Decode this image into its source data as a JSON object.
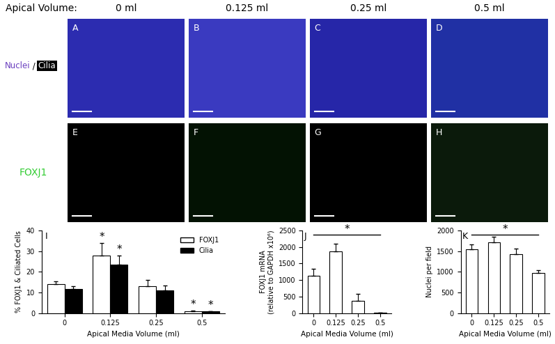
{
  "header": {
    "label": "Apical Volume:",
    "columns": [
      "0 ml",
      "0.125 ml",
      "0.25 ml",
      "0.5 ml"
    ]
  },
  "image_rows": [
    {
      "label_parts": [
        {
          "text": "Nuclei",
          "color": "#6a3fbf"
        },
        {
          "text": " / ",
          "color": "#000000"
        },
        {
          "text": "Cilia",
          "color": "#ffffff",
          "box": "#000000"
        }
      ],
      "panels": [
        {
          "letter": "A",
          "color": "#2c2cb0"
        },
        {
          "letter": "B",
          "color": "#3a3ac0"
        },
        {
          "letter": "C",
          "color": "#2626a8"
        },
        {
          "letter": "D",
          "color": "#2030a4"
        }
      ]
    },
    {
      "label_parts": [
        {
          "text": "FOXJ1",
          "color": "#33cc33"
        }
      ],
      "panels": [
        {
          "letter": "E",
          "color": "#000000"
        },
        {
          "letter": "F",
          "color": "#031203"
        },
        {
          "letter": "G",
          "color": "#000000"
        },
        {
          "letter": "H",
          "color": "#0b1a0b"
        }
      ]
    }
  ],
  "chart_data": [
    {
      "type": "bar",
      "panel": "I",
      "x_label": "Apical Media Volume (ml)",
      "y_label": "% FOXJ1 & Ciliated Cells",
      "categories": [
        "0",
        "0.125",
        "0.25",
        "0.5"
      ],
      "series": [
        {
          "name": "FOXJ1",
          "color": "#ffffff",
          "values": [
            14,
            28,
            13,
            1
          ],
          "errors": [
            1.5,
            6,
            3,
            0.3
          ]
        },
        {
          "name": "Cilia",
          "color": "#000000",
          "values": [
            11.5,
            23.5,
            11,
            0.7
          ],
          "errors": [
            1.5,
            4.5,
            2.5,
            0.3
          ]
        }
      ],
      "ylim": [
        0,
        40
      ],
      "yticks": [
        0,
        10,
        20,
        30,
        40
      ],
      "legend": "upper right",
      "annotations": [
        {
          "text": "*",
          "series": "FOXJ1",
          "category": "0.125"
        },
        {
          "text": "*",
          "series": "Cilia",
          "category": "0.125"
        },
        {
          "text": "*",
          "series": "FOXJ1",
          "category": "0.5"
        },
        {
          "text": "*",
          "series": "Cilia",
          "category": "0.5"
        }
      ]
    },
    {
      "type": "bar",
      "panel": "J",
      "x_label": "Apical Media Volume (ml)",
      "y_label": "FOXJ1 mRNA\n(relative to GAPDH x10⁶)",
      "categories": [
        "0",
        "0.125",
        "0.25",
        "0.5"
      ],
      "values": [
        1120,
        1870,
        380,
        10
      ],
      "errors": [
        220,
        230,
        200,
        5
      ],
      "color": "#ffffff",
      "ylim": [
        0,
        2500
      ],
      "yticks": [
        0,
        500,
        1000,
        1500,
        2000,
        2500
      ],
      "annotations": [
        {
          "text": "*",
          "y": 2380,
          "from": "0",
          "to": "0.5"
        }
      ]
    },
    {
      "type": "bar",
      "panel": "K",
      "x_label": "Apical Media Volume (ml)",
      "y_label": "Nuclei per field",
      "categories": [
        "0",
        "0.125",
        "0.25",
        "0.5"
      ],
      "values": [
        1540,
        1710,
        1420,
        975
      ],
      "errors": [
        130,
        130,
        140,
        60
      ],
      "color": "#ffffff",
      "ylim": [
        0,
        2000
      ],
      "yticks": [
        0,
        500,
        1000,
        1500,
        2000
      ],
      "annotations": [
        {
          "text": "*",
          "y": 1900,
          "from": "0",
          "to": "0.5"
        }
      ]
    }
  ]
}
